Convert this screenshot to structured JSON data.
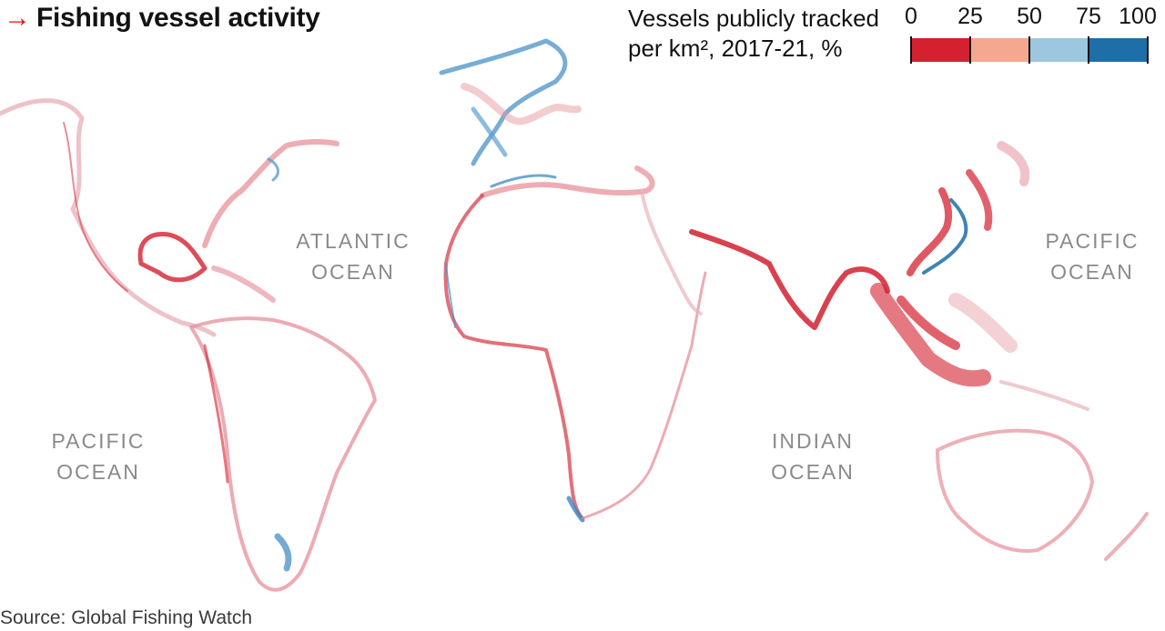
{
  "header": {
    "arrow": "→",
    "title": "Fishing vessel activity"
  },
  "legend": {
    "title_line1": "Vessels publicly tracked",
    "title_line2": "per km², 2017-21, %",
    "ticks": [
      "0",
      "25",
      "50",
      "75",
      "100"
    ],
    "colors": [
      "#d4202f",
      "#f4a88f",
      "#9cc7de",
      "#1e6ea8"
    ]
  },
  "oceans": {
    "atlantic": {
      "line1": "ATLANTIC",
      "line2": "OCEAN"
    },
    "pacific_east": {
      "line1": "PACIFIC",
      "line2": "OCEAN"
    },
    "pacific_west": {
      "line1": "PACIFIC",
      "line2": "OCEAN"
    },
    "indian": {
      "line1": "INDIAN",
      "line2": "OCEAN"
    }
  },
  "source": "Source: Global Fishing Watch"
}
